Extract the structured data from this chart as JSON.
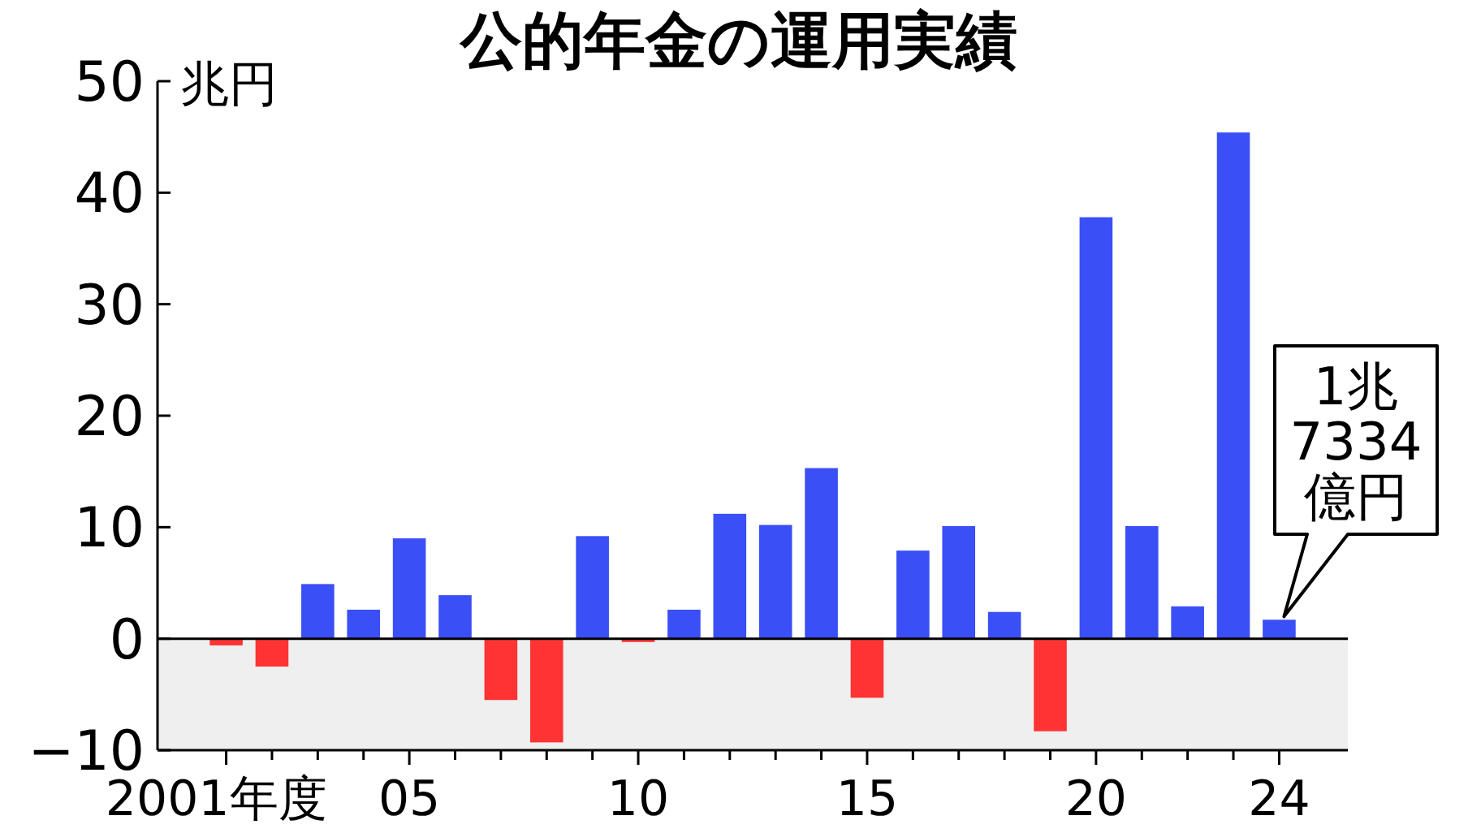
{
  "chart_data": {
    "type": "bar",
    "title": "公的年金の運用実績",
    "ylabel": "兆円",
    "categories": [
      "2001年度",
      null,
      null,
      null,
      "05",
      null,
      null,
      null,
      null,
      "10",
      null,
      null,
      null,
      null,
      "15",
      null,
      null,
      null,
      null,
      "20",
      null,
      null,
      null,
      "24"
    ],
    "values": [
      -0.6,
      -2.5,
      4.9,
      2.6,
      9.0,
      3.9,
      -5.5,
      -9.3,
      9.2,
      -0.3,
      2.6,
      11.2,
      10.2,
      15.3,
      -5.3,
      7.9,
      10.1,
      2.4,
      -8.3,
      37.8,
      10.1,
      2.9,
      45.4,
      1.7
    ],
    "colors": [
      "#ff3333",
      "#ff3333",
      "#3a4ff5",
      "#3a4ff5",
      "#3a4ff5",
      "#3a4ff5",
      "#ff3333",
      "#ff3333",
      "#3a4ff5",
      "#ff3333",
      "#3a4ff5",
      "#3a4ff5",
      "#3a4ff5",
      "#3a4ff5",
      "#ff3333",
      "#3a4ff5",
      "#3a4ff5",
      "#3a4ff5",
      "#ff3333",
      "#3a4ff5",
      "#3a4ff5",
      "#3a4ff5",
      "#3a4ff5",
      "#3a4ff5"
    ],
    "ylim": [
      -10,
      50
    ],
    "yticks": [
      -10,
      0,
      10,
      20,
      30,
      40,
      50
    ],
    "bands": [
      {
        "axis": "y",
        "from": -10,
        "to": 0,
        "color": "#efefef"
      }
    ],
    "annotations": [
      {
        "text": "1兆\n7334\n億円",
        "x": "24",
        "y": 1.7
      }
    ]
  }
}
